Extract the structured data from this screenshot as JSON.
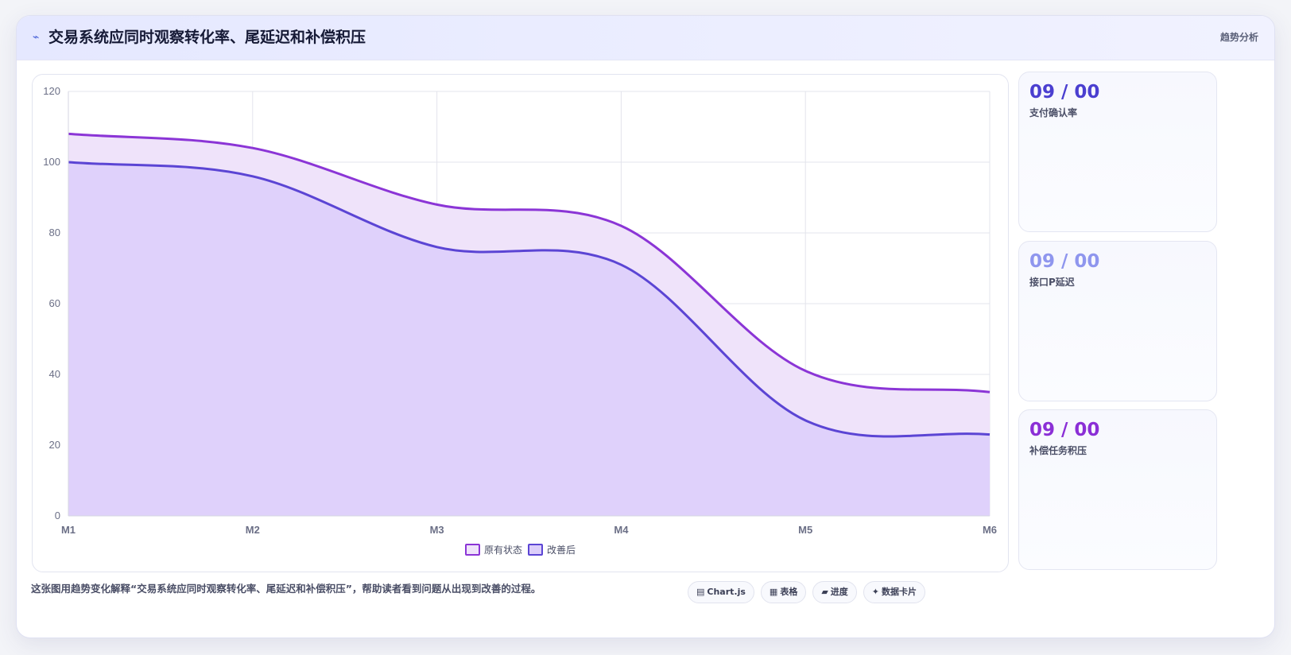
{
  "header": {
    "icon": "trend-icon",
    "title": "交易系统应同时观察转化率、尾延迟和补偿积压",
    "tag": "趋势分析"
  },
  "chart_data": {
    "type": "area",
    "categories": [
      "M1",
      "M2",
      "M3",
      "M4",
      "M5",
      "M6"
    ],
    "series": [
      {
        "name": "原有状态",
        "values": [
          108,
          104,
          88,
          82,
          41,
          35
        ],
        "color": "#8b35d6",
        "fill": "#efe3fa"
      },
      {
        "name": "改善后",
        "values": [
          100,
          96,
          76,
          71,
          27,
          23
        ],
        "color": "#5b45d4",
        "fill": "#dccefa"
      }
    ],
    "ylim": [
      0,
      120
    ],
    "yticks": [
      0,
      20,
      40,
      60,
      80,
      100,
      120
    ],
    "grid": true,
    "legend": "bottom",
    "title": "",
    "xlabel": "",
    "ylabel": ""
  },
  "stats": [
    {
      "value": "09 / 00",
      "label": "支付确认率",
      "color": "#4b3fd0"
    },
    {
      "value": "09 / 00",
      "label": "接口P延迟",
      "color": "#8f96ee"
    },
    {
      "value": "09 / 00",
      "label": "补偿任务积压",
      "color": "#8b2fd6"
    }
  ],
  "footer": {
    "description": "这张图用趋势变化解释“交易系统应同时观察转化率、尾延迟和补偿积压”，帮助读者看到问题从出现到改善的过程。",
    "chips": [
      {
        "icon": "chart-icon",
        "glyph": "▤",
        "label": "Chart.js"
      },
      {
        "icon": "table-icon",
        "glyph": "▦",
        "label": "表格"
      },
      {
        "icon": "progress-icon",
        "glyph": "▰",
        "label": "进度"
      },
      {
        "icon": "card-icon",
        "glyph": "✦",
        "label": "数据卡片"
      }
    ]
  }
}
